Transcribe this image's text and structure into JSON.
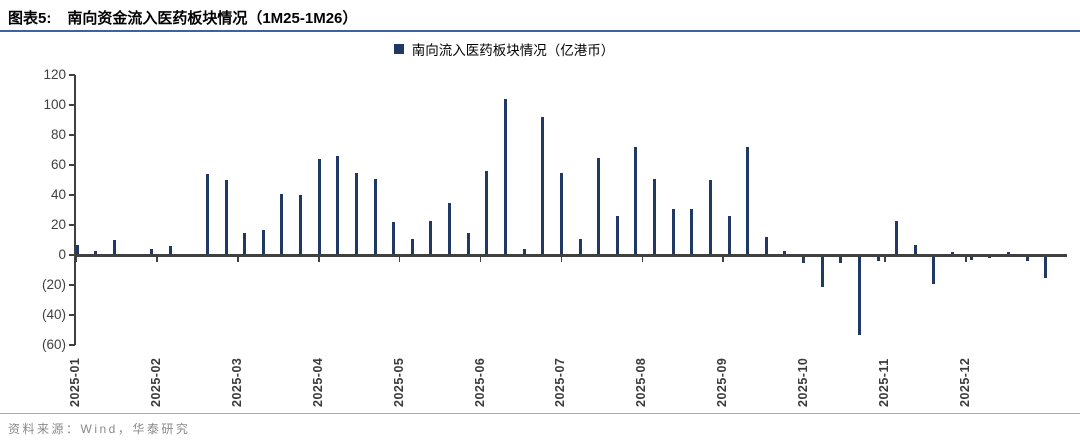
{
  "figure": {
    "label": "图表5:",
    "title": "南向资金流入医药板块情况（1M25-1M26）"
  },
  "legend": {
    "text": "南向流入医药板块情况（亿港币）",
    "marker": "navy-square-icon"
  },
  "footer": {
    "source_label": "资料来源：Wind，华泰研究"
  },
  "colors": {
    "bar": "#1f3864",
    "axis": "#404040",
    "tick_label": "#404040",
    "title_rule": "#3a62a7",
    "footer_rule": "#9db0cc"
  },
  "chart_data": {
    "type": "bar",
    "title": "南向流入医药板块情况（亿港币）",
    "ylabel": "亿港币",
    "frequency": "weekly",
    "grid": false,
    "legend_position": "top-center",
    "ylim": [
      -60,
      120
    ],
    "ytick_values": [
      120,
      100,
      80,
      60,
      40,
      20,
      0,
      -20,
      -40,
      -60
    ],
    "ytick_labels": [
      "120",
      "100",
      "80",
      "60",
      "40",
      "20",
      "0",
      "(20)",
      "(40)",
      "(60)"
    ],
    "x_month_labels": [
      "2025-01",
      "2025-02",
      "2025-03",
      "2025-04",
      "2025-05",
      "2025-06",
      "2025-07",
      "2025-08",
      "2025-09",
      "2025-10",
      "2025-11",
      "2025-12"
    ],
    "values": [
      7,
      3,
      10,
      1,
      4,
      6,
      1,
      54,
      50,
      15,
      17,
      41,
      40,
      64,
      66,
      55,
      51,
      22,
      11,
      23,
      35,
      15,
      56,
      104,
      4,
      92,
      55,
      11,
      65,
      26,
      72,
      51,
      31,
      31,
      50,
      26,
      72,
      12,
      3,
      -5,
      -21,
      -5,
      -53,
      -4,
      23,
      7,
      -19,
      2,
      -3,
      -2,
      2,
      -4,
      -15
    ]
  }
}
